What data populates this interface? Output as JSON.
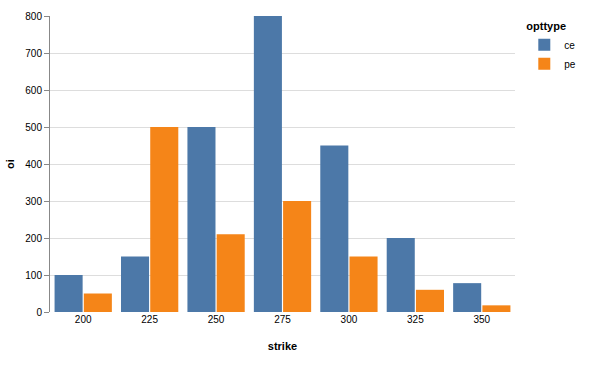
{
  "chart_data": {
    "type": "bar",
    "x_label": "strike",
    "y_label": "oi",
    "legend_title": "opttype",
    "categories": [
      "200",
      "225",
      "250",
      "275",
      "300",
      "325",
      "350"
    ],
    "series": [
      {
        "name": "ce",
        "color": "#4c78a8",
        "values": [
          100,
          150,
          500,
          800,
          450,
          200,
          78
        ]
      },
      {
        "name": "pe",
        "color": "#f58518",
        "values": [
          50,
          500,
          210,
          300,
          150,
          60,
          18
        ]
      }
    ],
    "ylim": [
      0,
      800
    ],
    "yticks": [
      0,
      100,
      200,
      300,
      400,
      500,
      600,
      700,
      800
    ],
    "grid": true,
    "legend": "top-right"
  }
}
